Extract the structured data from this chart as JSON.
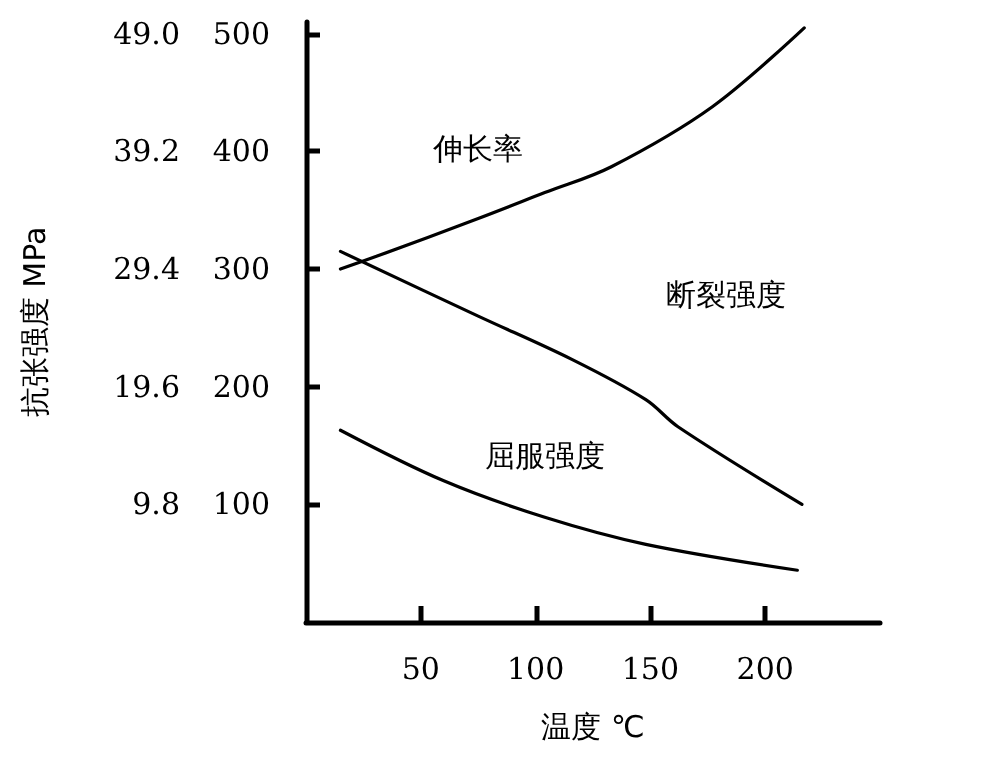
{
  "chart_data": {
    "type": "line",
    "xlabel": "温度 ℃",
    "y2label": "抗张强度 MPa",
    "xlim": [
      0,
      250
    ],
    "xticks": [
      50,
      100,
      150,
      200
    ],
    "ylim": [
      0,
      510
    ],
    "yticks": [
      100,
      200,
      300,
      400,
      500
    ],
    "y2lim": [
      0,
      49.98
    ],
    "y2ticks": [
      {
        "value": 9.8,
        "label": "9.8"
      },
      {
        "value": 19.6,
        "label": "19.6"
      },
      {
        "value": 29.4,
        "label": "29.4"
      },
      {
        "value": 39.2,
        "label": "39.2"
      },
      {
        "value": 49.0,
        "label": "49.0"
      }
    ],
    "series": [
      {
        "name": "伸长率",
        "color": "#000000",
        "x": [
          15,
          31,
          75,
          104,
          133,
          177,
          217
        ],
        "values": [
          300,
          311,
          343,
          365,
          387,
          438,
          505
        ]
      },
      {
        "name": "断裂强度",
        "color": "#000000",
        "x": [
          15,
          75,
          116,
          148,
          162,
          216
        ],
        "values": [
          315,
          260,
          223,
          189,
          166,
          100
        ]
      },
      {
        "name": "屈服强度",
        "color": "#000000",
        "x": [
          15,
          60,
          104,
          148,
          214
        ],
        "values": [
          163,
          120,
          89,
          66,
          44
        ]
      }
    ],
    "grid": false,
    "marker": "none",
    "line_style": "solid"
  }
}
